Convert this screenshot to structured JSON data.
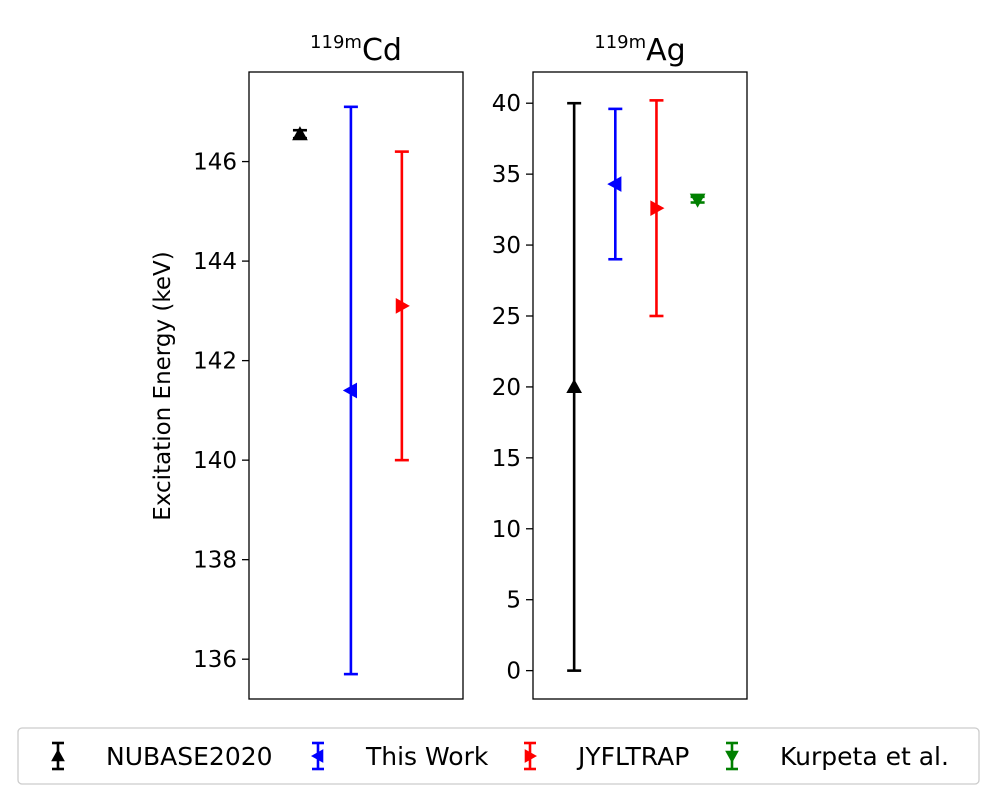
{
  "chart_data": {
    "type": "scatter",
    "ylabel": "Excitation Energy (keV)",
    "legend": {
      "placement": "bottom",
      "entries": [
        {
          "name": "NUBASE2020",
          "color": "#000000",
          "marker": "triangle-up"
        },
        {
          "name": "This Work",
          "color": "#0000ff",
          "marker": "triangle-left"
        },
        {
          "name": "JYFLTRAP",
          "color": "#ff0000",
          "marker": "triangle-right"
        },
        {
          "name": "Kurpeta et al.",
          "color": "#008000",
          "marker": "triangle-down"
        }
      ]
    },
    "panels": [
      {
        "title_sup": "119m",
        "title_main": "Cd",
        "ylim": [
          135.2,
          147.8
        ],
        "yticks": [
          136,
          138,
          140,
          142,
          144,
          146
        ],
        "xlim": [
          0,
          4.2
        ],
        "grid": false,
        "series": [
          {
            "name": "NUBASE2020",
            "x": 1,
            "y": 146.55,
            "yerr_low": 146.47,
            "yerr_high": 146.63
          },
          {
            "name": "This Work",
            "x": 2,
            "y": 141.4,
            "yerr_low": 135.7,
            "yerr_high": 147.1
          },
          {
            "name": "JYFLTRAP",
            "x": 3,
            "y": 143.1,
            "yerr_low": 140.0,
            "yerr_high": 146.2
          }
        ]
      },
      {
        "title_sup": "119m",
        "title_main": "Ag",
        "ylim": [
          -2.0,
          42.2
        ],
        "yticks": [
          0,
          5,
          10,
          15,
          20,
          25,
          30,
          35,
          40
        ],
        "xlim": [
          0,
          5.2
        ],
        "grid": false,
        "series": [
          {
            "name": "NUBASE2020",
            "x": 1,
            "y": 20.0,
            "yerr_low": 0.0,
            "yerr_high": 40.0
          },
          {
            "name": "This Work",
            "x": 2,
            "y": 34.3,
            "yerr_low": 29.0,
            "yerr_high": 39.6
          },
          {
            "name": "JYFLTRAP",
            "x": 3,
            "y": 32.6,
            "yerr_low": 25.0,
            "yerr_high": 40.2
          },
          {
            "name": "Kurpeta et al.",
            "x": 4,
            "y": 33.2,
            "yerr_low": 33.0,
            "yerr_high": 33.4
          }
        ]
      }
    ]
  }
}
